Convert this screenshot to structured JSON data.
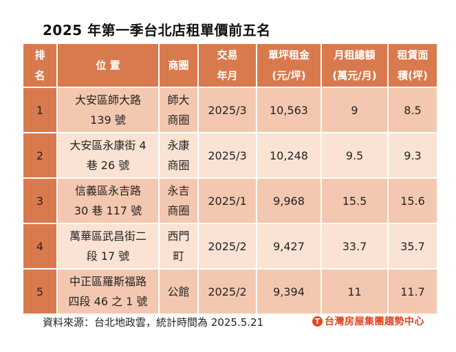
{
  "title": "2025 年第一季台北店租單價前五名",
  "headers": {
    "rank": [
      "排",
      "名"
    ],
    "location": "位 置",
    "district": "商圈",
    "date": [
      "交易",
      "年月"
    ],
    "unit_rent": [
      "單坪租金",
      "(元/坪)"
    ],
    "total_rent": [
      "月租總額",
      "(萬元/月)"
    ],
    "area": [
      "租賃面",
      "積(坪)"
    ]
  },
  "rows": [
    {
      "rank": "1",
      "location": [
        "大安區師大路",
        "139 號"
      ],
      "district": [
        "師大",
        "商圈"
      ],
      "date": "2025/3",
      "unit_rent": "10,563",
      "total_rent": "9",
      "area": "8.5"
    },
    {
      "rank": "2",
      "location": [
        "大安區永康街 4",
        "巷 26 號"
      ],
      "district": [
        "永康",
        "商圈"
      ],
      "date": "2025/3",
      "unit_rent": "10,248",
      "total_rent": "9.5",
      "area": "9.3"
    },
    {
      "rank": "3",
      "location": [
        "信義區永吉路",
        "30 巷 117 號"
      ],
      "district": [
        "永吉",
        "商圈"
      ],
      "date": "2025/1",
      "unit_rent": "9,968",
      "total_rent": "15.5",
      "area": "15.6"
    },
    {
      "rank": "4",
      "location": [
        "萬華區武昌街二",
        "段 17 號"
      ],
      "district": [
        "西門",
        "町"
      ],
      "date": "2025/2",
      "unit_rent": "9,427",
      "total_rent": "33.7",
      "area": "35.7"
    },
    {
      "rank": "5",
      "location": [
        "中正區羅斯福路",
        "四段 46 之 1 號"
      ],
      "district": [
        "公館"
      ],
      "date": "2025/2",
      "unit_rent": "9,394",
      "total_rent": "11",
      "area": "11.7"
    }
  ],
  "footer": {
    "source": "資料來源：台北地政雲，統計時間為 2025.5.21",
    "brand": "台灣房屋集團趨勢中心",
    "brand_icon": "台灣房屋-logo-icon"
  },
  "colors": {
    "header_bg": "#d97a4e",
    "row_odd_bg": "#f4c8b0",
    "row_even_bg": "#fae3d4",
    "brand": "#e2451e"
  }
}
